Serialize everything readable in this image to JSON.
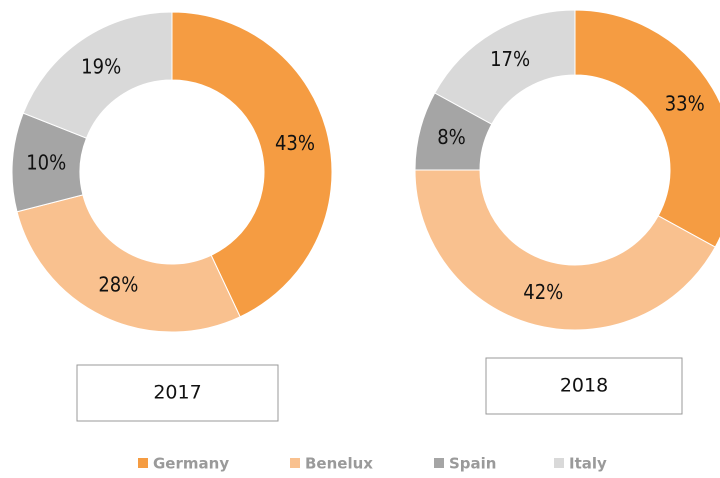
{
  "chart_data": [
    {
      "type": "donut",
      "title": "2017",
      "categories": [
        "Germany",
        "Benelux",
        "Spain",
        "Italy"
      ],
      "values": [
        43,
        28,
        10,
        19
      ],
      "value_labels": [
        "43%",
        "28%",
        "10%",
        "19%"
      ],
      "colors": [
        "#f59c42",
        "#f9c18f",
        "#a5a5a5",
        "#d9d9d9"
      ]
    },
    {
      "type": "donut",
      "title": "2018",
      "categories": [
        "Germany",
        "Benelux",
        "Spain",
        "Italy"
      ],
      "values": [
        33,
        42,
        8,
        17
      ],
      "value_labels": [
        "33%",
        "42%",
        "8%",
        "17%"
      ],
      "colors": [
        "#f59c42",
        "#f9c18f",
        "#a5a5a5",
        "#d9d9d9"
      ]
    }
  ]
}
